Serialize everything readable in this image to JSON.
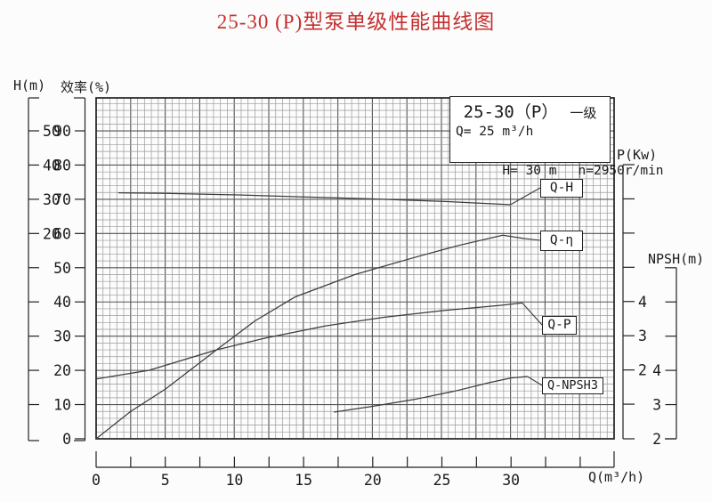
{
  "title": "25-30 (P)型泵单级性能曲线图",
  "info_box": {
    "model": "25-30（P）",
    "stage": "一级",
    "flow": "Q= 25 m³/h",
    "head": "H= 30 m",
    "speed": "n=2950r/min"
  },
  "axis_labels": {
    "head": "H(m)",
    "efficiency": "效率(%)",
    "power": "P(Kw)",
    "npsh": "NPSH(m)",
    "flow": "Q(m³/h)"
  },
  "chart_data": {
    "type": "line",
    "title": "25-30 (P)型泵单级性能曲线图",
    "x_axis": {
      "label": "Q(m³/h)",
      "tick_labels": [
        0,
        5,
        10,
        15,
        20,
        25,
        30
      ],
      "minor_step": 2.5,
      "range": [
        0,
        37.5
      ],
      "grid": true
    },
    "y_axes": {
      "H": {
        "label": "H(m)",
        "tick_labels": [
          50,
          40,
          30,
          20
        ],
        "unit": "m"
      },
      "efficiency": {
        "label": "效率(%)",
        "tick_labels": [
          90,
          80,
          70,
          60,
          50,
          40,
          30,
          20,
          10,
          0
        ],
        "unit": "%"
      },
      "P": {
        "label": "P(Kw)",
        "tick_labels": [
          4,
          3,
          2
        ],
        "unit": "Kw"
      },
      "NPSH": {
        "label": "NPSH(m)",
        "tick_labels": [
          4,
          3,
          2
        ],
        "unit": "m"
      }
    },
    "series": [
      {
        "name": "Q-H",
        "y_axis": "H",
        "Q": [
          1.6,
          5,
          10,
          15,
          20,
          25,
          30
        ],
        "values": [
          31.9,
          31.7,
          31.3,
          30.7,
          30.1,
          29.4,
          28.4
        ]
      },
      {
        "name": "Q-η",
        "y_axis": "efficiency",
        "Q": [
          0,
          2.5,
          5,
          8.7,
          11.5,
          14.4,
          18.7,
          23,
          26.2,
          29.4,
          31
        ],
        "values": [
          0,
          8,
          14.5,
          26,
          34.5,
          41.5,
          48,
          53,
          56.5,
          59.5,
          58.5
        ]
      },
      {
        "name": "Q-P",
        "y_axis": "P",
        "Q": [
          0,
          3.8,
          8.7,
          12.3,
          16.6,
          20.8,
          25.1,
          29.2,
          30.8
        ],
        "values": [
          1.75,
          2.0,
          2.6,
          2.95,
          3.3,
          3.55,
          3.75,
          3.9,
          3.97
        ]
      },
      {
        "name": "Q-NPSH3",
        "y_axis": "NPSH",
        "Q": [
          17.2,
          20,
          23,
          26,
          28.5,
          30,
          31.2
        ],
        "values": [
          2.78,
          2.95,
          3.15,
          3.4,
          3.65,
          3.78,
          3.82
        ]
      }
    ],
    "curve_labels": [
      "Q-H",
      "Q-η",
      "Q-P",
      "Q-NPSH3"
    ],
    "rated_point": {
      "Q": "25 m³/h",
      "H": "30 m",
      "n": "2950r/min"
    },
    "legend_position": "right-inline-boxes"
  },
  "colors": {
    "title": "#c53030",
    "curve": "#3c3c3c",
    "grid_minor": "#9a9a9a",
    "grid_major": "#555555",
    "border": "#222222"
  }
}
